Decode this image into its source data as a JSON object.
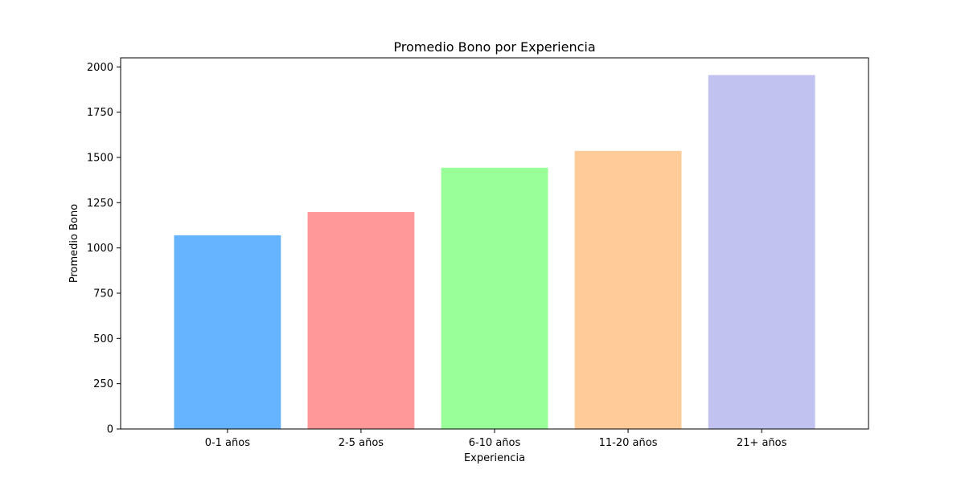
{
  "chart_data": {
    "type": "bar",
    "title": "Promedio Bono por Experiencia",
    "xlabel": "Experiencia",
    "ylabel": "Promedio Bono",
    "categories": [
      "0-1 años",
      "2-5 años",
      "6-10 años",
      "11-20 años",
      "21+ años"
    ],
    "values": [
      1070,
      1198,
      1443,
      1536,
      1955
    ],
    "colors": [
      "#66b3ff",
      "#ff9999",
      "#99ff99",
      "#ffcc99",
      "#c2c2f0"
    ],
    "ylim": [
      0,
      2050
    ],
    "yticks": [
      0,
      250,
      500,
      750,
      1000,
      1250,
      1500,
      1750,
      2000
    ],
    "grid": false,
    "legend": false
  }
}
